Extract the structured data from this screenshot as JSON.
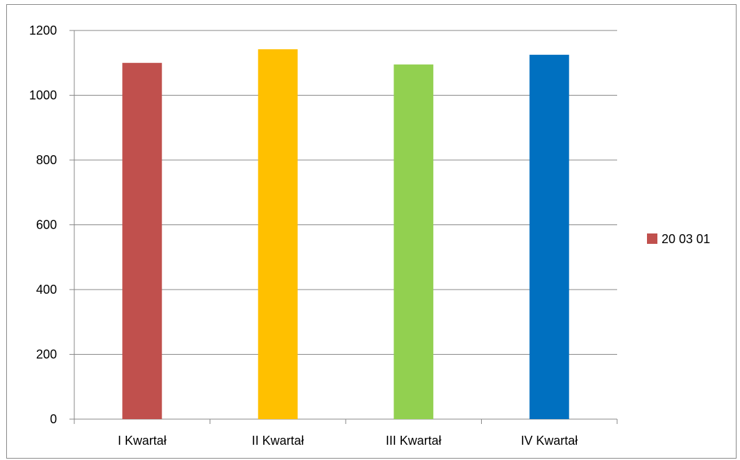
{
  "chart_data": {
    "type": "bar",
    "categories": [
      "I Kwartał",
      "II Kwartał",
      "III Kwartał",
      "IV Kwartał"
    ],
    "series": [
      {
        "name": "20 03 01",
        "values": [
          1100,
          1142,
          1095,
          1125
        ]
      }
    ],
    "bar_colors": [
      "#c0504d",
      "#ffc000",
      "#92d050",
      "#0070c0"
    ],
    "legend_color": "#c0504d",
    "ylim": [
      0,
      1200
    ],
    "yticks": [
      0,
      200,
      400,
      600,
      800,
      1000,
      1200
    ],
    "grid": true,
    "legend_position": "right"
  }
}
